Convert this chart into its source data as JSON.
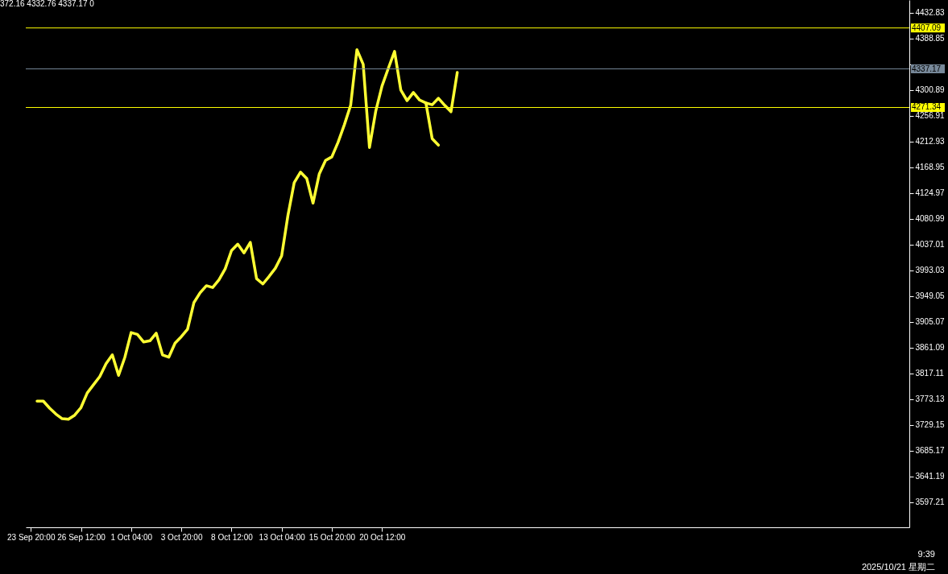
{
  "chart_data": {
    "type": "line",
    "categories": [
      "23 Sep 20:00",
      null,
      null,
      null,
      null,
      null,
      null,
      null,
      "26 Sep 12:00",
      null,
      null,
      null,
      null,
      null,
      null,
      null,
      "1 Oct 04:00",
      null,
      null,
      null,
      null,
      null,
      null,
      null,
      "3 Oct 20:00",
      null,
      null,
      null,
      null,
      null,
      null,
      null,
      "8 Oct 12:00",
      null,
      null,
      null,
      null,
      null,
      null,
      null,
      "13 Oct 04:00",
      null,
      null,
      null,
      null,
      null,
      null,
      null,
      "15 Oct 20:00",
      null,
      null,
      null,
      null,
      null,
      null,
      null,
      "20 Oct 12:00",
      null,
      null,
      null,
      null,
      null,
      null,
      null,
      null,
      null,
      null,
      null,
      null,
      null,
      null,
      null,
      null,
      null,
      null,
      null,
      null,
      null,
      null,
      null,
      null,
      null,
      null,
      null,
      null,
      null,
      null,
      null,
      null,
      null,
      null,
      null,
      null,
      null,
      null,
      null,
      null,
      null,
      null,
      null,
      null,
      null,
      null,
      null,
      null,
      null,
      null,
      null,
      null,
      null,
      null,
      null,
      null,
      null,
      null,
      null,
      null,
      null,
      null,
      null,
      null,
      null,
      null,
      null,
      null,
      null,
      null,
      null,
      null,
      null,
      null,
      null,
      null,
      null,
      null,
      null,
      null,
      null,
      null,
      null,
      null
    ],
    "series": [
      {
        "color": "#ffff33",
        "values": [
          null,
          3770,
          3770,
          3758,
          3748,
          3740,
          3739,
          3746,
          3759,
          3784,
          3798,
          3812,
          3834,
          3849,
          3814,
          3845,
          3887,
          3884,
          3871,
          3873,
          3886,
          3849,
          3845,
          3869,
          3880,
          3893,
          3938,
          3955,
          3967,
          3964,
          3977,
          3996,
          4027,
          4038,
          4023,
          4041,
          3979,
          3970,
          3983,
          3997,
          4018,
          4087,
          4143,
          4161,
          4150,
          4108,
          4158,
          4181,
          4187,
          4212,
          4242,
          4275,
          4370,
          4345,
          4203,
          4265,
          4308,
          4338,
          4367,
          4301,
          4283,
          4297,
          4284,
          4279,
          4276,
          4287,
          4275,
          4264,
          4331,
          null,
          null,
          null,
          null,
          null,
          null,
          null,
          null,
          null,
          null,
          null,
          null,
          null,
          null,
          null,
          null,
          null,
          null,
          null,
          null,
          null,
          null,
          null,
          null,
          null,
          null,
          null,
          null,
          null,
          null,
          null,
          null,
          null,
          null,
          null,
          null,
          null,
          null,
          null,
          null,
          null,
          null,
          null,
          null,
          null,
          null,
          null,
          null,
          null,
          null,
          null,
          null,
          null,
          null,
          null,
          null,
          null,
          null,
          null,
          null,
          null,
          null,
          null,
          null,
          null,
          null,
          null,
          null,
          null,
          null,
          null,
          null
        ]
      },
      {
        "color": "#ffff33",
        "values": [
          null,
          null,
          null,
          null,
          null,
          null,
          null,
          null,
          null,
          null,
          null,
          null,
          null,
          null,
          null,
          null,
          null,
          null,
          null,
          null,
          null,
          null,
          null,
          null,
          null,
          null,
          null,
          null,
          null,
          null,
          null,
          null,
          null,
          null,
          null,
          null,
          null,
          null,
          null,
          null,
          null,
          null,
          null,
          null,
          null,
          null,
          null,
          null,
          null,
          null,
          null,
          null,
          null,
          null,
          null,
          null,
          null,
          null,
          null,
          null,
          null,
          null,
          null,
          4279,
          4218,
          4207,
          null,
          null,
          null,
          null,
          null,
          null,
          null,
          null,
          null,
          null,
          null,
          null,
          null,
          null,
          null,
          null,
          null,
          null,
          null,
          null,
          null,
          null,
          null,
          null,
          null,
          null,
          null,
          null,
          null,
          null,
          null,
          null,
          null,
          null,
          null,
          null,
          null,
          null,
          null,
          null,
          null,
          null,
          null,
          null,
          null,
          null,
          null,
          null,
          null,
          null,
          null,
          null,
          null,
          null,
          null,
          null,
          null,
          null,
          null,
          null,
          null,
          null,
          null,
          null,
          null,
          null,
          null,
          null,
          null,
          null,
          null,
          null,
          null,
          null,
          null
        ]
      }
    ],
    "ylim": [
      3554.6,
      4454.8
    ],
    "yticks": [
      4432.83,
      4388.85,
      {
        "value": 4344.87,
        "label": null
      },
      4300.89,
      4256.91,
      4212.93,
      4168.95,
      4124.97,
      4080.99,
      4037.01,
      3993.03,
      3949.05,
      3905.07,
      3861.09,
      3817.11,
      3773.13,
      3729.15,
      3685.17,
      3641.19,
      3597.21
    ],
    "ref_lines": [
      {
        "axis": "y",
        "value": 4407.09,
        "label": "4407.09",
        "color": "#ffff00"
      },
      {
        "axis": "y",
        "value": 4337.17,
        "label": "4337.17",
        "color": "#778899"
      },
      {
        "axis": "y",
        "value": 4271.34,
        "label": "4271.34",
        "color": "#ffff00"
      }
    ],
    "annotations": [
      "372.16 4332.76 4337.17  0",
      "9:39",
      "2025/10/21 星期二"
    ],
    "grid": false,
    "marker": "none",
    "line_style": "solid"
  }
}
